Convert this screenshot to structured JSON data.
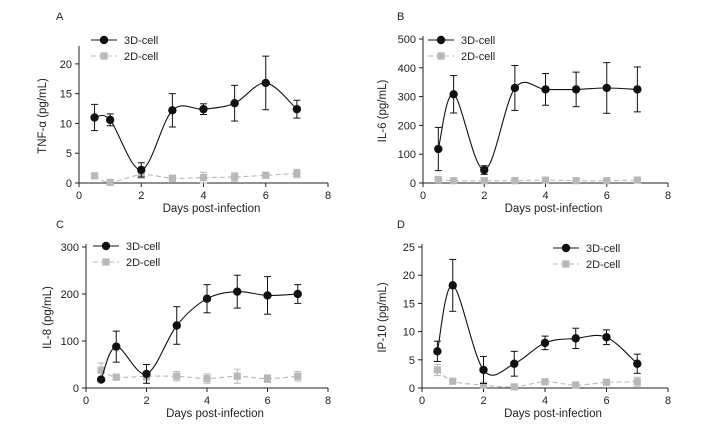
{
  "chart_data": [
    {
      "panel": "A",
      "type": "line",
      "xlabel": "Days post-infection",
      "ylabel": "TNF-α (pg/mL)",
      "xlim": [
        0,
        8
      ],
      "ylim": [
        0,
        22.5
      ],
      "xticks": [
        0,
        2,
        4,
        6,
        8
      ],
      "yticks": [
        0,
        5,
        10,
        15,
        20
      ],
      "ytick_labels": [
        "0",
        "5",
        "10",
        "15",
        "20"
      ],
      "legend_position": "top-left",
      "series": [
        {
          "name": "3D-cell",
          "color": "#111111",
          "marker": "circle",
          "x": [
            0.5,
            1,
            2,
            3,
            4,
            5,
            6,
            7
          ],
          "y": [
            11.0,
            10.6,
            2.2,
            12.2,
            12.4,
            13.4,
            16.8,
            12.4
          ],
          "err": [
            2.2,
            1.0,
            1.2,
            2.8,
            0.9,
            3.0,
            4.5,
            1.5
          ]
        },
        {
          "name": "2D-cell",
          "color": "#b8b8b8",
          "marker": "square",
          "x": [
            0.5,
            1,
            2,
            3,
            4,
            5,
            6,
            7
          ],
          "y": [
            1.2,
            0.1,
            1.4,
            0.8,
            0.9,
            1.0,
            1.3,
            1.6
          ],
          "err": [
            0.3,
            0.2,
            0.6,
            0.5,
            0.9,
            0.7,
            0.5,
            0.7
          ]
        }
      ]
    },
    {
      "panel": "B",
      "type": "line",
      "xlabel": "Days post-infection",
      "ylabel": "IL-6 (pg/mL)",
      "xlim": [
        0,
        8
      ],
      "ylim": [
        0,
        500
      ],
      "xticks": [
        0,
        2,
        4,
        6,
        8
      ],
      "yticks": [
        0,
        100,
        200,
        300,
        400,
        500
      ],
      "ytick_labels": [
        "0",
        "100",
        "200",
        "300",
        "400",
        "500"
      ],
      "legend_position": "top-left",
      "series": [
        {
          "name": "3D-cell",
          "color": "#111111",
          "marker": "circle",
          "x": [
            0.5,
            1,
            2,
            3,
            4,
            5,
            6,
            7
          ],
          "y": [
            118,
            308,
            45,
            330,
            325,
            325,
            330,
            325
          ],
          "err": [
            75,
            65,
            15,
            78,
            55,
            60,
            88,
            78
          ]
        },
        {
          "name": "2D-cell",
          "color": "#b8b8b8",
          "marker": "square",
          "x": [
            0.5,
            1,
            2,
            3,
            4,
            5,
            6,
            7
          ],
          "y": [
            12,
            8,
            8,
            8,
            10,
            8,
            8,
            10
          ],
          "err": [
            8,
            4,
            4,
            4,
            4,
            4,
            4,
            6
          ]
        }
      ]
    },
    {
      "panel": "C",
      "type": "line",
      "xlabel": "Days post-infection",
      "ylabel": "IL-8 (pg/mL)",
      "xlim": [
        0,
        8
      ],
      "ylim": [
        0,
        300
      ],
      "xticks": [
        0,
        2,
        4,
        6,
        8
      ],
      "yticks": [
        0,
        100,
        200,
        300
      ],
      "ytick_labels": [
        "0",
        "100",
        "200",
        "300"
      ],
      "legend_position": "top-left",
      "series": [
        {
          "name": "3D-cell",
          "color": "#111111",
          "marker": "circle",
          "x": [
            0.5,
            1,
            2,
            3,
            4,
            5,
            6,
            7
          ],
          "y": [
            18,
            88,
            30,
            133,
            190,
            205,
            197,
            200
          ],
          "err": [
            4,
            33,
            20,
            40,
            30,
            35,
            40,
            20
          ]
        },
        {
          "name": "2D-cell",
          "color": "#b8b8b8",
          "marker": "square",
          "x": [
            0.5,
            1,
            2,
            3,
            4,
            5,
            6,
            7
          ],
          "y": [
            38,
            23,
            25,
            25,
            20,
            25,
            20,
            25
          ],
          "err": [
            15,
            5,
            8,
            10,
            10,
            15,
            8,
            10
          ]
        }
      ]
    },
    {
      "panel": "D",
      "type": "line",
      "xlabel": "Days post-infection",
      "ylabel": "IP-10 (pg/mL)",
      "xlim": [
        0,
        8
      ],
      "ylim": [
        0,
        25
      ],
      "xticks": [
        0,
        2,
        4,
        6,
        8
      ],
      "yticks": [
        0,
        5,
        10,
        15,
        20,
        25
      ],
      "ytick_labels": [
        "0",
        "5",
        "10",
        "15",
        "20",
        "25"
      ],
      "legend_position": "top-right",
      "series": [
        {
          "name": "3D-cell",
          "color": "#111111",
          "marker": "circle",
          "x": [
            0.5,
            1,
            2,
            3,
            4,
            5,
            6,
            7
          ],
          "y": [
            6.5,
            18.2,
            3.2,
            4.3,
            8.0,
            8.8,
            9.0,
            4.3
          ],
          "err": [
            1.8,
            4.6,
            2.4,
            2.2,
            1.2,
            1.8,
            1.3,
            1.7
          ]
        },
        {
          "name": "2D-cell",
          "color": "#b8b8b8",
          "marker": "square",
          "x": [
            0.5,
            1,
            2,
            3,
            4,
            5,
            6,
            7
          ],
          "y": [
            3.2,
            1.2,
            0.5,
            0.2,
            1.1,
            0.5,
            1.0,
            1.1
          ],
          "err": [
            1.0,
            0.4,
            0.4,
            0.2,
            0.3,
            0.6,
            0.4,
            0.8
          ]
        }
      ]
    }
  ]
}
